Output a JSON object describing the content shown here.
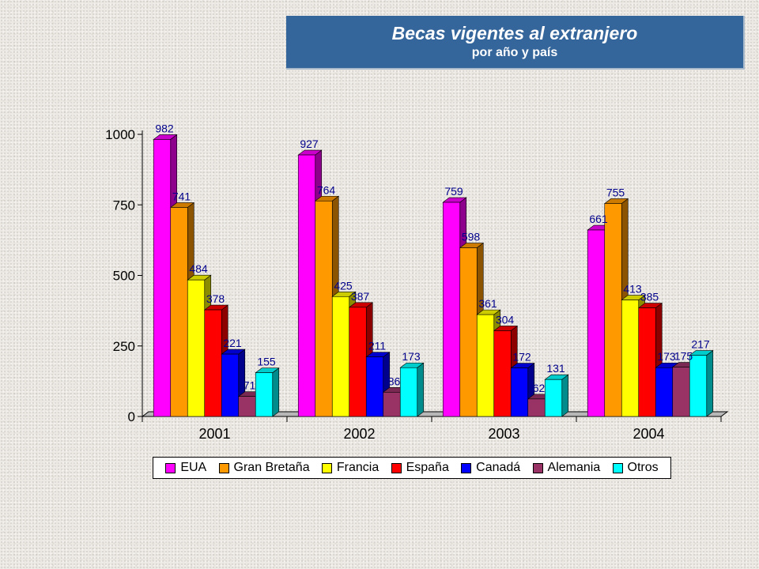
{
  "header": {
    "title": "Becas vigentes al extranjero",
    "subtitle": "por año y país"
  },
  "chart_data": {
    "type": "bar",
    "style": "3d-clustered",
    "title": "Becas vigentes al extranjero",
    "subtitle": "por año y país",
    "categories": [
      "2001",
      "2002",
      "2003",
      "2004"
    ],
    "yticks": [
      "0",
      "250",
      "500",
      "750",
      "1000"
    ],
    "ylim": [
      0,
      1000
    ],
    "legend_position": "bottom",
    "grid": false,
    "series": [
      {
        "name": "EUA",
        "color": "#ff00ff",
        "values": [
          982,
          927,
          759,
          661
        ]
      },
      {
        "name": "Gran Bretaña",
        "color": "#ff9900",
        "values": [
          741,
          764,
          598,
          755
        ]
      },
      {
        "name": "Francia",
        "color": "#ffff00",
        "values": [
          484,
          425,
          361,
          413
        ]
      },
      {
        "name": "España",
        "color": "#ff0000",
        "values": [
          378,
          387,
          304,
          385
        ]
      },
      {
        "name": "Canadá",
        "color": "#0000ff",
        "values": [
          221,
          211,
          172,
          173
        ]
      },
      {
        "name": "Alemania",
        "color": "#993366",
        "values": [
          71,
          86,
          62,
          175
        ]
      },
      {
        "name": "Otros",
        "color": "#00ffff",
        "values": [
          155,
          173,
          131,
          217
        ]
      }
    ]
  }
}
